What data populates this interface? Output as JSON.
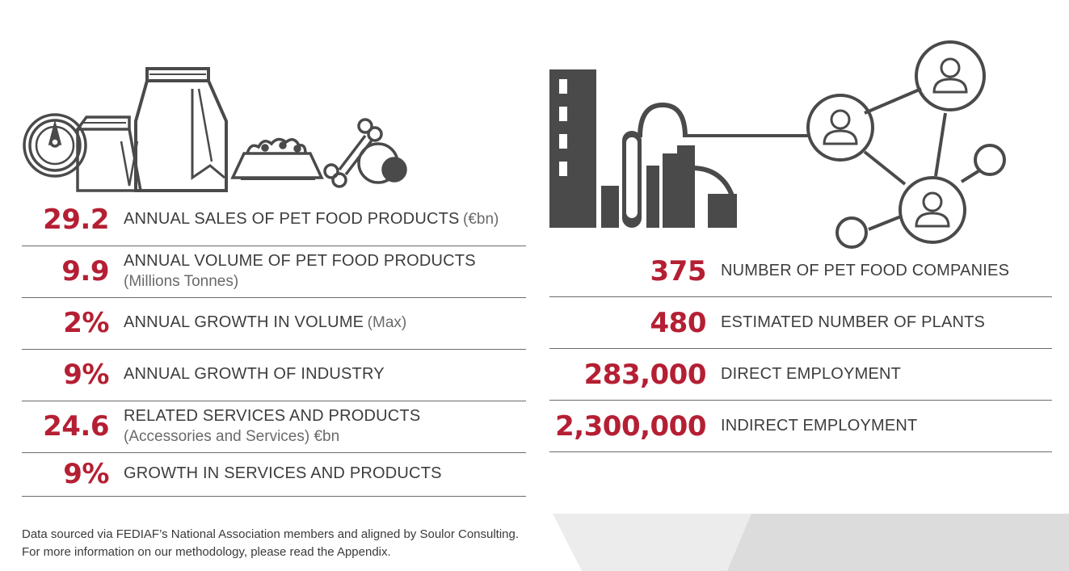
{
  "left_stats": [
    {
      "value": "29.2",
      "label": "ANNUAL SALES OF PET FOOD PRODUCTS",
      "inline_note": "(€bn)",
      "sub": ""
    },
    {
      "value": "9.9",
      "label": "ANNUAL VOLUME OF PET FOOD PRODUCTS",
      "inline_note": "",
      "sub": "(Millions Tonnes)"
    },
    {
      "value": "2%",
      "label": "ANNUAL GROWTH IN VOLUME",
      "inline_note": "(Max)",
      "sub": ""
    },
    {
      "value": "9%",
      "label": "ANNUAL GROWTH OF INDUSTRY",
      "inline_note": "",
      "sub": ""
    },
    {
      "value": "24.6",
      "label": "RELATED SERVICES AND PRODUCTS",
      "inline_note": "",
      "sub": "(Accessories and Services) €bn"
    },
    {
      "value": "9%",
      "label": "GROWTH IN SERVICES AND PRODUCTS",
      "inline_note": "",
      "sub": ""
    }
  ],
  "right_stats": [
    {
      "value": "375",
      "label": "NUMBER OF PET FOOD COMPANIES"
    },
    {
      "value": "480",
      "label": "ESTIMATED NUMBER OF PLANTS"
    },
    {
      "value": "283,000",
      "label": "DIRECT EMPLOYMENT"
    },
    {
      "value": "2,300,000",
      "label": "INDIRECT EMPLOYMENT"
    }
  ],
  "footer": {
    "line1": "Data sourced via FEDIAF’s National Association members and aligned by Soulor Consulting.",
    "line2": "For more information on our methodology, please read the Appendix."
  },
  "colors": {
    "accent": "#b51f33",
    "icon": "#4a4a4a",
    "rule": "#6b6b6b",
    "panel": "#e3e3e3"
  },
  "icons": [
    "pet-food-can-icon",
    "pet-food-bag-small-icon",
    "pet-food-bag-large-icon",
    "food-bowl-icon",
    "bone-and-ball-icon",
    "factory-icon",
    "people-network-icon"
  ]
}
